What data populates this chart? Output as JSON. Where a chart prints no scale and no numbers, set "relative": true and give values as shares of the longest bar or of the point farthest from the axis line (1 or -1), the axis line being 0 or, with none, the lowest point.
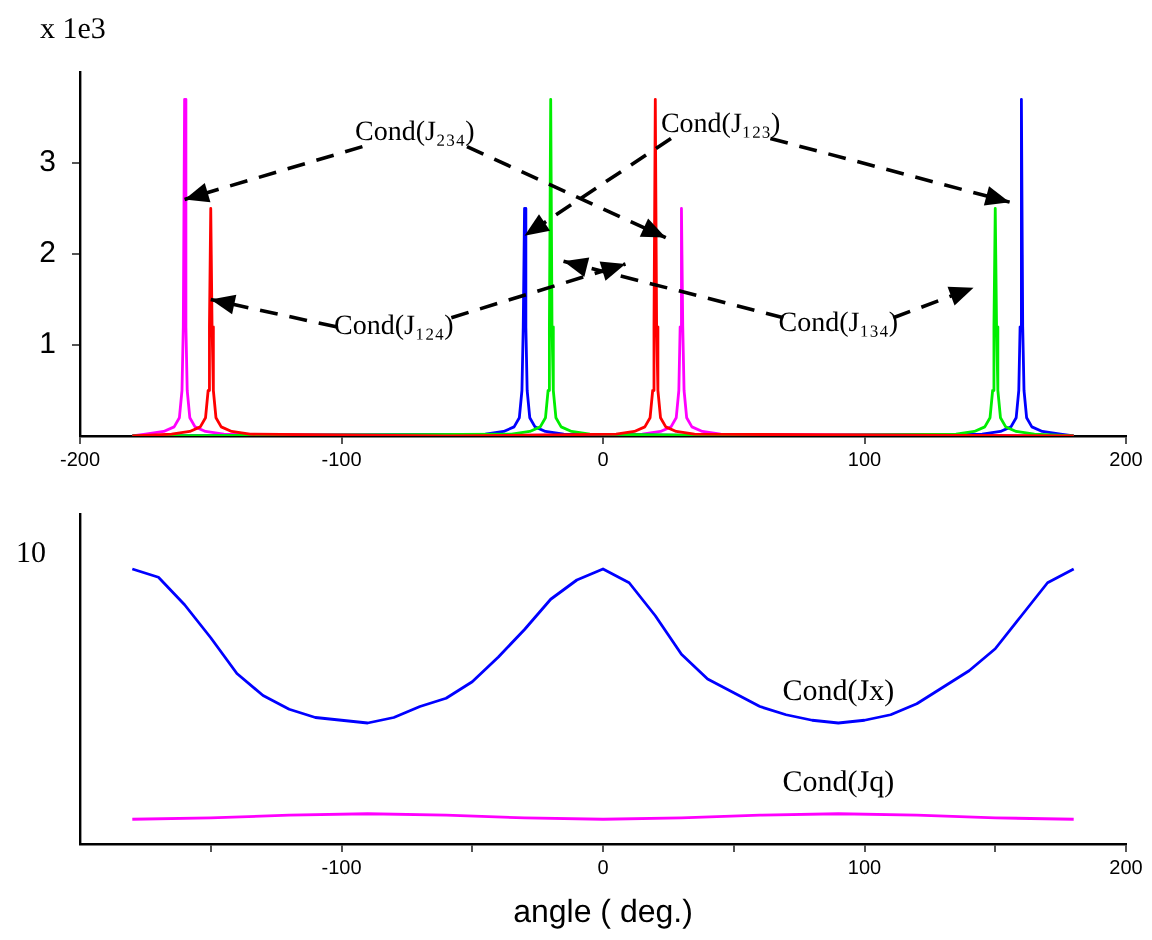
{
  "chart_data": [
    {
      "type": "line",
      "ylabel": "x 1e3",
      "xlim": [
        -200,
        200
      ],
      "xticks": [
        -200,
        -100,
        0,
        100,
        200
      ],
      "ylim": [
        0,
        4
      ],
      "yticks": [
        1,
        2,
        3
      ],
      "marker": "none",
      "legend": false,
      "annotations": [
        {
          "text": "Cond(J₂₃₄)",
          "x": -160,
          "y": 2.6
        },
        {
          "text": "Cond(J₁₂₃)",
          "x": -30,
          "y": 2.2
        },
        {
          "text": "Cond(J₁₂₄)",
          "x": -150,
          "y": 1.5
        },
        "Cond(J₁₃₄)"
      ],
      "series": [
        {
          "color": "#ff0000",
          "x": [
            -180,
            -165,
            -158,
            -154,
            -152,
            -151,
            -150.5,
            -150,
            -149.5,
            -149,
            -148,
            -146,
            -142,
            -135,
            -60,
            5,
            12,
            16,
            18,
            19,
            19.5,
            20,
            20.5,
            21,
            22,
            24,
            28,
            35,
            180
          ],
          "values": [
            0,
            0.02,
            0.05,
            0.1,
            0.2,
            0.5,
            1.2,
            2.5,
            1.2,
            0.5,
            0.2,
            0.1,
            0.05,
            0.02,
            0,
            0.02,
            0.05,
            0.1,
            0.2,
            0.5,
            1.2,
            3.7,
            1.2,
            0.5,
            0.2,
            0.1,
            0.05,
            0.02,
            0
          ]
        },
        {
          "color": "#00ee00",
          "x": [
            -180,
            -35,
            -28,
            -24,
            -22,
            -21,
            -20.5,
            -20,
            -19.5,
            -19,
            -18,
            -16,
            -12,
            -5,
            60,
            135,
            142,
            146,
            148,
            149,
            149.5,
            150,
            150.5,
            151,
            152,
            154,
            158,
            165,
            180
          ],
          "values": [
            0,
            0.02,
            0.05,
            0.1,
            0.2,
            0.5,
            1.2,
            3.7,
            1.2,
            0.5,
            0.2,
            0.1,
            0.05,
            0.02,
            0,
            0.02,
            0.05,
            0.1,
            0.2,
            0.5,
            1.2,
            2.5,
            1.2,
            0.5,
            0.2,
            0.1,
            0.05,
            0.02,
            0
          ]
        },
        {
          "color": "#0000ff",
          "x": [
            -180,
            -45,
            -38,
            -34,
            -32,
            -31,
            -30.5,
            -30,
            -29.5,
            -29,
            -28,
            -26,
            -22,
            -15,
            60,
            145,
            152,
            156,
            158,
            159,
            159.5,
            160,
            160.5,
            161,
            162,
            164,
            168,
            175,
            180
          ],
          "values": [
            0,
            0.02,
            0.05,
            0.1,
            0.2,
            0.5,
            1.2,
            2.5,
            1.2,
            0.5,
            0.2,
            0.1,
            0.05,
            0.02,
            0,
            0.02,
            0.05,
            0.1,
            0.2,
            0.5,
            1.2,
            3.7,
            1.2,
            0.5,
            0.2,
            0.1,
            0.05,
            0.02,
            0
          ]
        },
        {
          "color": "#ff00ff",
          "x": [
            -180,
            -175,
            -168,
            -164,
            -162,
            -161,
            -160.5,
            -160,
            -159.5,
            -159,
            -158,
            -156,
            -152,
            -145,
            -60,
            15,
            22,
            26,
            28,
            29,
            29.5,
            30,
            30.5,
            31,
            32,
            34,
            38,
            45,
            180
          ],
          "values": [
            0,
            0.02,
            0.05,
            0.1,
            0.2,
            0.5,
            1.2,
            3.7,
            1.2,
            0.5,
            0.2,
            0.1,
            0.05,
            0.02,
            0,
            0.02,
            0.05,
            0.1,
            0.2,
            0.5,
            1.2,
            2.5,
            1.2,
            0.5,
            0.2,
            0.1,
            0.05,
            0.02,
            0
          ]
        }
      ]
    },
    {
      "type": "line",
      "xlabel": "angle ( deg.)",
      "xlim": [
        -200,
        200
      ],
      "xticks": [
        {
          "value": -150,
          "label": null
        },
        -100,
        {
          "value": -50,
          "label": null
        },
        0,
        {
          "value": 50,
          "label": null
        },
        100,
        {
          "value": 150,
          "label": null
        },
        200
      ],
      "relative": true,
      "annotations": [
        "10"
      ],
      "marker": "none",
      "legend": false,
      "series": [
        {
          "name": "Cond(Jx)",
          "color": "#0000ff",
          "x": [
            -180,
            -170,
            -160,
            -150,
            -140,
            -130,
            -120,
            -110,
            -100,
            -90,
            -80,
            -70,
            -60,
            -50,
            -40,
            -30,
            -20,
            -10,
            0,
            10,
            20,
            30,
            40,
            50,
            60,
            70,
            80,
            90,
            100,
            110,
            120,
            130,
            140,
            150,
            160,
            170,
            180
          ],
          "values": [
            1,
            0.97,
            0.87,
            0.75,
            0.62,
            0.54,
            0.49,
            0.46,
            0.45,
            0.44,
            0.46,
            0.5,
            0.53,
            0.59,
            0.68,
            0.78,
            0.89,
            0.96,
            1,
            0.95,
            0.83,
            0.69,
            0.6,
            0.55,
            0.5,
            0.47,
            0.45,
            0.44,
            0.45,
            0.47,
            0.51,
            0.57,
            0.63,
            0.71,
            0.83,
            0.95,
            1
          ]
        },
        {
          "name": "Cond(Jq)",
          "color": "#ff00ff",
          "x": [
            -180,
            -150,
            -120,
            -90,
            -60,
            -30,
            0,
            30,
            60,
            90,
            120,
            150,
            180
          ],
          "values": [
            0.09,
            0.095,
            0.105,
            0.11,
            0.105,
            0.095,
            0.09,
            0.095,
            0.105,
            0.11,
            0.105,
            0.095,
            0.09
          ]
        }
      ]
    }
  ]
}
